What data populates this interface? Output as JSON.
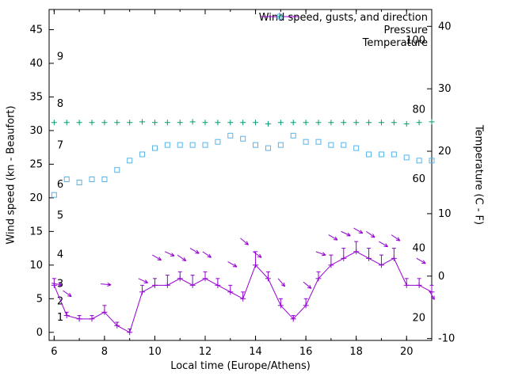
{
  "chart_data": {
    "type": "line",
    "title": "",
    "xlabel": "Local time (Europe/Athens)",
    "ylabel_left": "Wind speed (kn - Beaufort)",
    "ylabel_right": "Temperature (C - F)",
    "x_range": [
      5.8,
      21.0
    ],
    "x_ticks": [
      6,
      8,
      10,
      12,
      14,
      16,
      18,
      20
    ],
    "x_minor_step": 1,
    "y_left_range": [
      -1.2,
      48
    ],
    "y_left_ticks": [
      0,
      5,
      10,
      15,
      20,
      25,
      30,
      35,
      40,
      45
    ],
    "y_right_range": [
      -10.3,
      42.7
    ],
    "y_right_ticks": [
      -10,
      0,
      10,
      20,
      30,
      40
    ],
    "grid": false,
    "legend_position": "top-right-inside",
    "legend": [
      {
        "label": "Wind speed, gusts, and direction",
        "series": "wind"
      },
      {
        "label": "Pressure",
        "series": "pressure"
      },
      {
        "label": "Temperature",
        "series": "temperature"
      }
    ],
    "colors": {
      "wind": "#9400d3",
      "pressure": "#009e73",
      "temperature": "#56b4e9",
      "axis": "#000000"
    },
    "beaufort_labels": [
      {
        "label": "1",
        "kn": 2.2
      },
      {
        "label": "2",
        "kn": 4.6
      },
      {
        "label": "3",
        "kn": 7.2
      },
      {
        "label": "4",
        "kn": 11.6
      },
      {
        "label": "5",
        "kn": 17.4
      },
      {
        "label": "6",
        "kn": 22.0
      },
      {
        "label": "7",
        "kn": 27.8
      },
      {
        "label": "8",
        "kn": 34.0
      },
      {
        "label": "9",
        "kn": 41.0
      }
    ],
    "fahrenheit_labels": [
      20,
      40,
      60,
      80,
      100
    ],
    "x": [
      6,
      6.5,
      7,
      7.5,
      8,
      8.5,
      9,
      9.5,
      10,
      10.5,
      11,
      11.5,
      12,
      12.5,
      13,
      13.5,
      14,
      14.5,
      15,
      15.5,
      16,
      16.5,
      17,
      17.5,
      18,
      18.5,
      19,
      19.5,
      20,
      20.5,
      21
    ],
    "series": [
      {
        "name": "wind_speed_kn",
        "values": [
          7,
          2.5,
          2,
          2,
          3,
          1,
          0,
          6,
          7,
          7,
          8,
          7,
          8,
          7,
          6,
          5,
          10,
          8,
          4,
          2,
          4,
          8,
          10,
          11,
          12,
          11,
          10,
          11,
          7,
          7,
          6
        ]
      },
      {
        "name": "wind_gust_kn",
        "values": [
          8,
          3,
          2.5,
          2.5,
          4,
          1.5,
          0.5,
          7,
          8,
          8.5,
          9,
          8.5,
          9,
          8,
          7,
          6,
          12,
          9,
          5,
          2.5,
          5,
          9,
          11.5,
          12.5,
          13.5,
          12.5,
          11.5,
          12.5,
          8,
          8,
          7
        ]
      },
      {
        "name": "pressure_plotted",
        "values": [
          31.2,
          31.2,
          31.2,
          31.2,
          31.2,
          31.2,
          31.2,
          31.3,
          31.2,
          31.2,
          31.2,
          31.3,
          31.2,
          31.2,
          31.2,
          31.2,
          31.2,
          31.0,
          31.2,
          31.2,
          31.2,
          31.2,
          31.2,
          31.2,
          31.2,
          31.2,
          31.2,
          31.2,
          31.0,
          31.2,
          31.3
        ]
      },
      {
        "name": "temperature_c",
        "values": [
          13,
          15.5,
          15,
          15.5,
          15.5,
          17,
          18.5,
          19.5,
          20.5,
          21,
          21,
          21,
          21,
          21.5,
          22.5,
          22,
          21,
          20.5,
          21,
          22.5,
          21.5,
          21.5,
          21,
          21,
          20.5,
          19.5,
          19.5,
          19.5,
          19,
          18.5,
          18.5
        ]
      }
    ],
    "wind_arrows": [
      {
        "t": 5.9,
        "kn": 7.3,
        "angle_deg": 10
      },
      {
        "t": 6.35,
        "kn": 6.2,
        "angle_deg": 35
      },
      {
        "t": 7.85,
        "kn": 7.2,
        "angle_deg": 5
      },
      {
        "t": 9.35,
        "kn": 8.0,
        "angle_deg": 25
      },
      {
        "t": 9.9,
        "kn": 11.5,
        "angle_deg": 30
      },
      {
        "t": 10.4,
        "kn": 12.0,
        "angle_deg": 25
      },
      {
        "t": 10.9,
        "kn": 11.5,
        "angle_deg": 35
      },
      {
        "t": 11.4,
        "kn": 12.5,
        "angle_deg": 30
      },
      {
        "t": 11.9,
        "kn": 12.0,
        "angle_deg": 35
      },
      {
        "t": 12.9,
        "kn": 10.5,
        "angle_deg": 30
      },
      {
        "t": 13.4,
        "kn": 14.0,
        "angle_deg": 40
      },
      {
        "t": 13.9,
        "kn": 12.0,
        "angle_deg": 35
      },
      {
        "t": 14.9,
        "kn": 8.0,
        "angle_deg": 50
      },
      {
        "t": 15.9,
        "kn": 7.5,
        "angle_deg": 40
      },
      {
        "t": 16.4,
        "kn": 12.0,
        "angle_deg": 20
      },
      {
        "t": 16.9,
        "kn": 14.5,
        "angle_deg": 30
      },
      {
        "t": 17.4,
        "kn": 15.0,
        "angle_deg": 25
      },
      {
        "t": 17.9,
        "kn": 15.5,
        "angle_deg": 30
      },
      {
        "t": 18.4,
        "kn": 15.0,
        "angle_deg": 35
      },
      {
        "t": 18.9,
        "kn": 13.5,
        "angle_deg": 30
      },
      {
        "t": 19.4,
        "kn": 14.5,
        "angle_deg": 35
      },
      {
        "t": 20.4,
        "kn": 11.0,
        "angle_deg": 30
      },
      {
        "t": 20.9,
        "kn": 6.2,
        "angle_deg": 60
      }
    ]
  }
}
